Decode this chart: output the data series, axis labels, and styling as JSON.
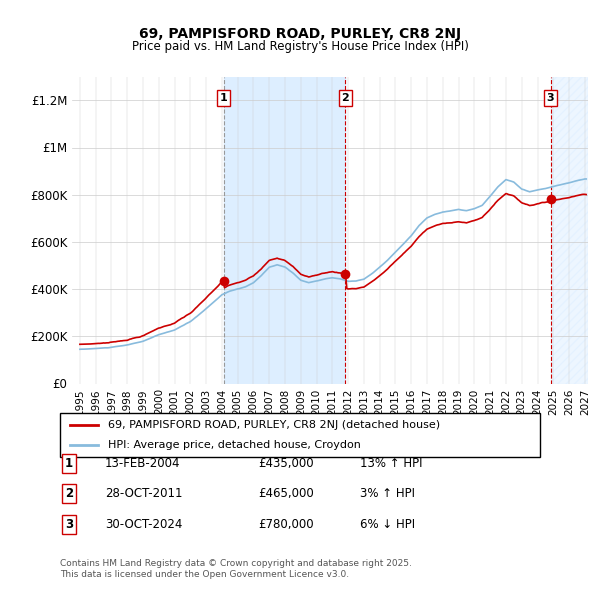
{
  "title": "69, PAMPISFORD ROAD, PURLEY, CR8 2NJ",
  "subtitle": "Price paid vs. HM Land Registry's House Price Index (HPI)",
  "legend_line1": "69, PAMPISFORD ROAD, PURLEY, CR8 2NJ (detached house)",
  "legend_line2": "HPI: Average price, detached house, Croydon",
  "sale1_date": "13-FEB-2004",
  "sale1_price": "£435,000",
  "sale1_hpi": "13% ↑ HPI",
  "sale2_date": "28-OCT-2011",
  "sale2_price": "£465,000",
  "sale2_hpi": "3% ↑ HPI",
  "sale3_date": "30-OCT-2024",
  "sale3_price": "£780,000",
  "sale3_hpi": "6% ↓ HPI",
  "footnote": "Contains HM Land Registry data © Crown copyright and database right 2025.\nThis data is licensed under the Open Government Licence v3.0.",
  "red_color": "#cc0000",
  "blue_color": "#88bbdd",
  "shading_color": "#ddeeff",
  "ylim_max": 1300000,
  "yticks": [
    0,
    200000,
    400000,
    600000,
    800000,
    1000000,
    1200000
  ],
  "ytick_labels": [
    "£0",
    "£200K",
    "£400K",
    "£600K",
    "£800K",
    "£1M",
    "£1.2M"
  ],
  "sale1_year": 2004.12,
  "sale2_year": 2011.83,
  "sale3_year": 2024.83,
  "sale1_price_val": 435000,
  "sale2_price_val": 465000,
  "sale3_price_val": 780000,
  "xmin": 1994.5,
  "xmax": 2027.2
}
